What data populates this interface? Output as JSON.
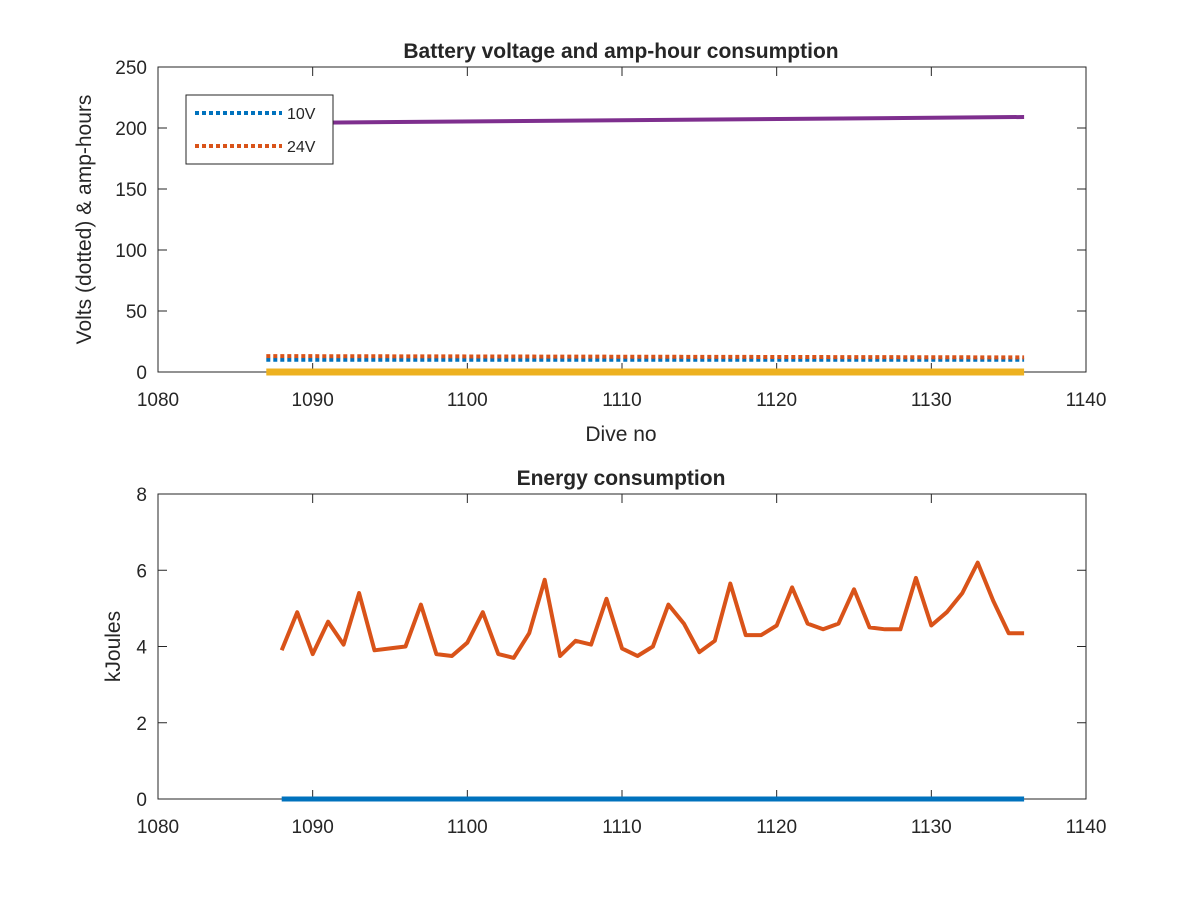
{
  "chart_data": [
    {
      "type": "line",
      "title": "Battery voltage and amp-hour consumption",
      "xlabel": "Dive no",
      "ylabel": "Volts (dotted) & amp-hours",
      "xlim": [
        1080,
        1140
      ],
      "ylim": [
        0,
        250
      ],
      "xticks": [
        "1080",
        "1090",
        "1100",
        "1110",
        "1120",
        "1130",
        "1140"
      ],
      "yticks": [
        "0",
        "50",
        "100",
        "150",
        "200",
        "250"
      ],
      "grid": false,
      "legend": "top-left",
      "series": [
        {
          "name": "10V",
          "style": "dotted",
          "color": "#0072BD",
          "x": [
            1087,
            1136
          ],
          "y": [
            10,
            10
          ]
        },
        {
          "name": "24V",
          "style": "dotted",
          "color": "#D95319",
          "x": [
            1087,
            1136
          ],
          "y": [
            13,
            12
          ]
        },
        {
          "name": "",
          "style": "solid",
          "color": "#EDB120",
          "x": [
            1087,
            1136
          ],
          "y": [
            0,
            0
          ]
        },
        {
          "name": "",
          "style": "solid",
          "color": "#7E2F8E",
          "x": [
            1087,
            1136
          ],
          "y": [
            204,
            209
          ]
        }
      ]
    },
    {
      "type": "line",
      "title": "Energy consumption",
      "xlabel": "",
      "ylabel": "kJoules",
      "xlim": [
        1080,
        1140
      ],
      "ylim": [
        0,
        8
      ],
      "xticks": [
        "1080",
        "1090",
        "1100",
        "1110",
        "1120",
        "1130",
        "1140"
      ],
      "yticks": [
        "0",
        "2",
        "4",
        "6",
        "8"
      ],
      "grid": false,
      "series": [
        {
          "name": "",
          "style": "solid",
          "color": "#D95319",
          "x": [
            1088,
            1089,
            1090,
            1091,
            1092,
            1093,
            1094,
            1095,
            1096,
            1097,
            1098,
            1099,
            1100,
            1101,
            1102,
            1103,
            1104,
            1105,
            1106,
            1107,
            1108,
            1109,
            1110,
            1111,
            1112,
            1113,
            1114,
            1115,
            1116,
            1117,
            1118,
            1119,
            1120,
            1121,
            1122,
            1123,
            1124,
            1125,
            1126,
            1127,
            1128,
            1129,
            1130,
            1131,
            1132,
            1133,
            1134,
            1135,
            1136
          ],
          "y": [
            3.9,
            4.9,
            3.8,
            4.65,
            4.05,
            5.4,
            3.9,
            3.95,
            4.0,
            5.1,
            3.8,
            3.75,
            4.1,
            4.9,
            3.8,
            3.7,
            4.35,
            5.75,
            3.75,
            4.15,
            4.05,
            5.25,
            3.95,
            3.75,
            4.0,
            5.1,
            4.6,
            3.85,
            4.15,
            5.65,
            4.3,
            4.3,
            4.55,
            5.55,
            4.6,
            4.45,
            4.6,
            5.5,
            4.5,
            4.45,
            4.45,
            5.8,
            4.55,
            4.9,
            5.4,
            6.2,
            5.2,
            4.35,
            4.35
          ]
        },
        {
          "name": "",
          "style": "solid",
          "color": "#0072BD",
          "x": [
            1088,
            1136
          ],
          "y": [
            0,
            0
          ]
        }
      ]
    }
  ]
}
